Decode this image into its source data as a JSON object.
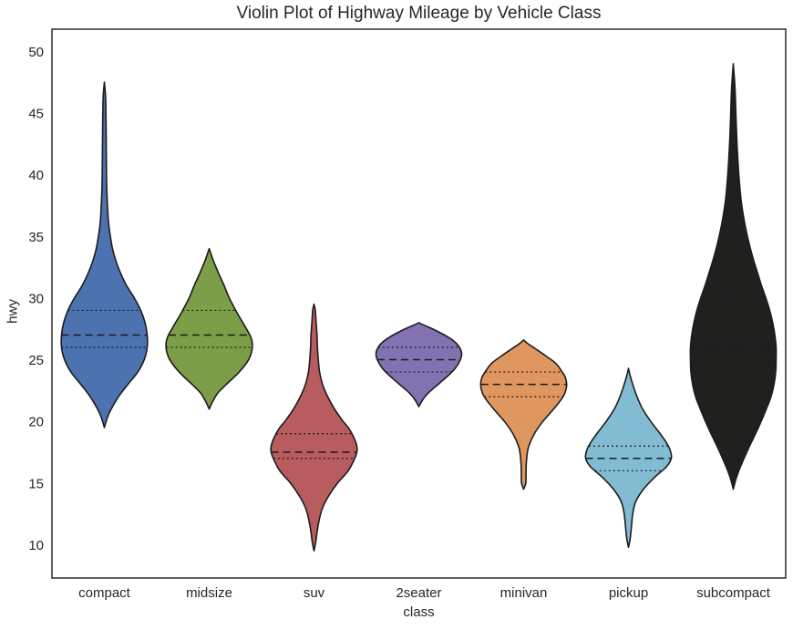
{
  "chart_data": {
    "type": "violin",
    "title": "Violin Plot of Highway Mileage by Vehicle Class",
    "xlabel": "class",
    "ylabel": "hwy",
    "ylim": [
      7.3,
      51.8
    ],
    "yticks": [
      10,
      15,
      20,
      25,
      30,
      35,
      40,
      45,
      50
    ],
    "grid": false,
    "legend": false,
    "background": "#ffffff",
    "edge_color": "#1c1c1c",
    "text_color": "#262626",
    "inner_style": "quartile",
    "categories": [
      "compact",
      "midsize",
      "suv",
      "2seater",
      "minivan",
      "pickup",
      "subcompact"
    ],
    "series": [
      {
        "name": "compact",
        "color": "#4C72B0",
        "range": [
          19.5,
          47.5
        ],
        "quartiles": {
          "q1": 26,
          "median": 27,
          "q3": 29
        },
        "profile": [
          [
            19.5,
            0
          ],
          [
            20.3,
            0.07
          ],
          [
            21,
            0.16
          ],
          [
            22,
            0.33
          ],
          [
            23,
            0.55
          ],
          [
            24,
            0.78
          ],
          [
            25,
            0.93
          ],
          [
            26,
            1.0
          ],
          [
            27,
            1.0
          ],
          [
            28,
            0.95
          ],
          [
            29,
            0.85
          ],
          [
            30,
            0.7
          ],
          [
            31,
            0.52
          ],
          [
            32,
            0.38
          ],
          [
            33,
            0.27
          ],
          [
            34,
            0.19
          ],
          [
            35,
            0.14
          ],
          [
            36,
            0.1
          ],
          [
            37,
            0.08
          ],
          [
            38.5,
            0.06
          ],
          [
            40,
            0.05
          ],
          [
            42,
            0.045
          ],
          [
            44,
            0.04
          ],
          [
            45.5,
            0.035
          ],
          [
            46.5,
            0.025
          ],
          [
            47.5,
            0
          ]
        ]
      },
      {
        "name": "midsize",
        "color": "#7D9E48",
        "range": [
          21,
          34
        ],
        "quartiles": {
          "q1": 26,
          "median": 27,
          "q3": 29
        },
        "profile": [
          [
            21,
            0
          ],
          [
            21.6,
            0.08
          ],
          [
            22.3,
            0.2
          ],
          [
            23,
            0.4
          ],
          [
            24,
            0.7
          ],
          [
            25,
            0.92
          ],
          [
            25.8,
            1.0
          ],
          [
            26.5,
            1.0
          ],
          [
            27,
            0.95
          ],
          [
            27.8,
            0.82
          ],
          [
            28.5,
            0.7
          ],
          [
            29,
            0.62
          ],
          [
            30,
            0.47
          ],
          [
            31,
            0.35
          ],
          [
            32,
            0.22
          ],
          [
            33,
            0.1
          ],
          [
            33.6,
            0.04
          ],
          [
            34,
            0
          ]
        ]
      },
      {
        "name": "suv",
        "color": "#B85C60",
        "range": [
          9.5,
          29.5
        ],
        "quartiles": {
          "q1": 17,
          "median": 17.5,
          "q3": 19
        },
        "profile": [
          [
            9.5,
            0
          ],
          [
            10.2,
            0.04
          ],
          [
            11,
            0.07
          ],
          [
            12,
            0.12
          ],
          [
            13,
            0.2
          ],
          [
            14,
            0.35
          ],
          [
            15,
            0.55
          ],
          [
            16,
            0.8
          ],
          [
            17,
            0.95
          ],
          [
            17.5,
            1.0
          ],
          [
            18,
            1.0
          ],
          [
            18.7,
            0.93
          ],
          [
            19.5,
            0.8
          ],
          [
            20,
            0.68
          ],
          [
            21,
            0.48
          ],
          [
            22,
            0.32
          ],
          [
            23,
            0.2
          ],
          [
            24,
            0.13
          ],
          [
            25,
            0.1
          ],
          [
            26,
            0.08
          ],
          [
            27,
            0.07
          ],
          [
            28,
            0.05
          ],
          [
            29,
            0.03
          ],
          [
            29.5,
            0
          ]
        ]
      },
      {
        "name": "2seater",
        "color": "#8372B2",
        "range": [
          21.2,
          28
        ],
        "quartiles": {
          "q1": 24,
          "median": 25,
          "q3": 26
        },
        "profile": [
          [
            21.2,
            0
          ],
          [
            21.8,
            0.1
          ],
          [
            22.3,
            0.22
          ],
          [
            23,
            0.45
          ],
          [
            23.7,
            0.68
          ],
          [
            24.3,
            0.85
          ],
          [
            25,
            0.97
          ],
          [
            25.5,
            1.0
          ],
          [
            26,
            0.95
          ],
          [
            26.5,
            0.82
          ],
          [
            27,
            0.6
          ],
          [
            27.5,
            0.32
          ],
          [
            27.8,
            0.12
          ],
          [
            28,
            0
          ]
        ]
      },
      {
        "name": "minivan",
        "color": "#E0965F",
        "range": [
          14.5,
          26.6
        ],
        "quartiles": {
          "q1": 22,
          "median": 23,
          "q3": 24
        },
        "profile": [
          [
            14.5,
            0
          ],
          [
            15,
            0.05
          ],
          [
            15.8,
            0.055
          ],
          [
            16.5,
            0.06
          ],
          [
            17.3,
            0.08
          ],
          [
            18,
            0.12
          ],
          [
            19,
            0.25
          ],
          [
            20,
            0.45
          ],
          [
            21,
            0.7
          ],
          [
            22,
            0.92
          ],
          [
            22.8,
            1.0
          ],
          [
            23.5,
            0.98
          ],
          [
            24,
            0.9
          ],
          [
            24.7,
            0.75
          ],
          [
            25.3,
            0.52
          ],
          [
            25.9,
            0.27
          ],
          [
            26.3,
            0.1
          ],
          [
            26.6,
            0
          ]
        ]
      },
      {
        "name": "pickup",
        "color": "#82BCD2",
        "range": [
          9.8,
          24.3
        ],
        "quartiles": {
          "q1": 16,
          "median": 17,
          "q3": 18
        },
        "profile": [
          [
            9.8,
            0
          ],
          [
            10.5,
            0.04
          ],
          [
            11.5,
            0.07
          ],
          [
            12.5,
            0.1
          ],
          [
            13.5,
            0.17
          ],
          [
            14.5,
            0.35
          ],
          [
            15.5,
            0.62
          ],
          [
            16.3,
            0.88
          ],
          [
            17,
            1.0
          ],
          [
            17.7,
            0.97
          ],
          [
            18.3,
            0.88
          ],
          [
            19,
            0.74
          ],
          [
            20,
            0.52
          ],
          [
            21,
            0.33
          ],
          [
            22,
            0.2
          ],
          [
            23,
            0.1
          ],
          [
            23.7,
            0.04
          ],
          [
            24.3,
            0
          ]
        ]
      },
      {
        "name": "subcompact",
        "color": "#20201E",
        "range": [
          14.5,
          49
        ],
        "quartiles": {
          "q1": 24.5,
          "median": 26,
          "q3": 30.5
        },
        "profile": [
          [
            14.5,
            0
          ],
          [
            15.3,
            0.06
          ],
          [
            16,
            0.13
          ],
          [
            17,
            0.25
          ],
          [
            18,
            0.38
          ],
          [
            19,
            0.52
          ],
          [
            20,
            0.65
          ],
          [
            21,
            0.77
          ],
          [
            22,
            0.88
          ],
          [
            23,
            0.95
          ],
          [
            24,
            0.99
          ],
          [
            25,
            1.0
          ],
          [
            26,
            1.0
          ],
          [
            27,
            0.97
          ],
          [
            28,
            0.92
          ],
          [
            29,
            0.85
          ],
          [
            30,
            0.76
          ],
          [
            31,
            0.66
          ],
          [
            32,
            0.57
          ],
          [
            33,
            0.48
          ],
          [
            34,
            0.4
          ],
          [
            35,
            0.33
          ],
          [
            36,
            0.27
          ],
          [
            37,
            0.22
          ],
          [
            38,
            0.18
          ],
          [
            39.5,
            0.14
          ],
          [
            41,
            0.11
          ],
          [
            43,
            0.08
          ],
          [
            45,
            0.06
          ],
          [
            47,
            0.04
          ],
          [
            49,
            0
          ]
        ]
      }
    ]
  }
}
